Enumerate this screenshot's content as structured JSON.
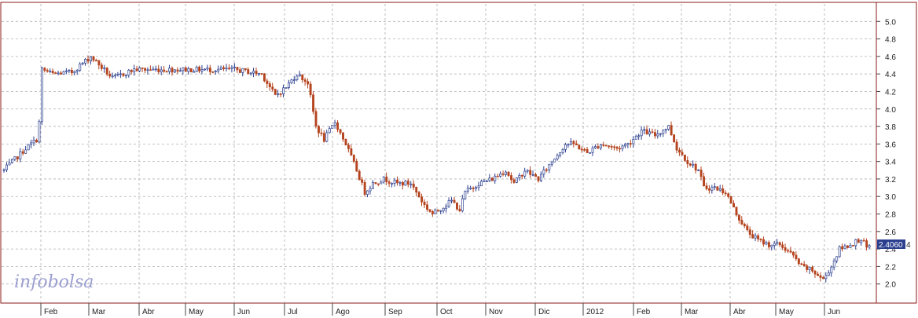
{
  "chart_data": {
    "type": "candlestick",
    "watermark": "infobolsa",
    "last_value_label": "2.4060",
    "y_axis": {
      "min": 1.8,
      "max": 5.2,
      "side": "right",
      "ticks": [
        "2.0",
        "2.2",
        "2.4",
        "2.6",
        "2.8",
        "3.0",
        "3.2",
        "3.4",
        "3.6",
        "3.8",
        "4.0",
        "4.2",
        "4.4",
        "4.6",
        "4.8",
        "5.0"
      ]
    },
    "x_axis": {
      "labels": [
        "Feb",
        "Mar",
        "Abr",
        "May",
        "Jun",
        "Jul",
        "Ago",
        "Sep",
        "Oct",
        "Nov",
        "Dic",
        "2012",
        "Feb",
        "Mar",
        "Abr",
        "May",
        "Jun"
      ]
    },
    "grid": true,
    "colors": {
      "up": "#2b3f8f",
      "down": "#b5441f",
      "frame": "#8b1a1a",
      "grid": "#b0b0b0",
      "label_bg": "#2b3f8f"
    },
    "series_anchors": [
      [
        0,
        3.3
      ],
      [
        8,
        3.55
      ],
      [
        12,
        3.65
      ],
      [
        13,
        3.85
      ],
      [
        14,
        4.45
      ],
      [
        18,
        4.4
      ],
      [
        25,
        4.42
      ],
      [
        32,
        4.6
      ],
      [
        40,
        4.35
      ],
      [
        48,
        4.45
      ],
      [
        60,
        4.45
      ],
      [
        75,
        4.45
      ],
      [
        85,
        4.45
      ],
      [
        95,
        4.4
      ],
      [
        100,
        4.15
      ],
      [
        104,
        4.25
      ],
      [
        108,
        4.4
      ],
      [
        112,
        4.3
      ],
      [
        115,
        3.8
      ],
      [
        118,
        3.65
      ],
      [
        122,
        3.85
      ],
      [
        126,
        3.6
      ],
      [
        130,
        3.3
      ],
      [
        133,
        3.05
      ],
      [
        136,
        3.15
      ],
      [
        140,
        3.2
      ],
      [
        145,
        3.15
      ],
      [
        150,
        3.15
      ],
      [
        155,
        2.9
      ],
      [
        158,
        2.8
      ],
      [
        165,
        2.95
      ],
      [
        168,
        2.85
      ],
      [
        170,
        3.05
      ],
      [
        175,
        3.15
      ],
      [
        180,
        3.2
      ],
      [
        185,
        3.3
      ],
      [
        188,
        3.15
      ],
      [
        192,
        3.3
      ],
      [
        197,
        3.2
      ],
      [
        202,
        3.4
      ],
      [
        207,
        3.6
      ],
      [
        210,
        3.6
      ],
      [
        215,
        3.5
      ],
      [
        220,
        3.6
      ],
      [
        226,
        3.55
      ],
      [
        230,
        3.6
      ],
      [
        235,
        3.75
      ],
      [
        240,
        3.7
      ],
      [
        245,
        3.8
      ],
      [
        248,
        3.55
      ],
      [
        252,
        3.4
      ],
      [
        256,
        3.3
      ],
      [
        258,
        3.1
      ],
      [
        262,
        3.1
      ],
      [
        266,
        3.05
      ],
      [
        270,
        2.8
      ],
      [
        274,
        2.6
      ],
      [
        278,
        2.5
      ],
      [
        282,
        2.45
      ],
      [
        286,
        2.45
      ],
      [
        290,
        2.35
      ],
      [
        294,
        2.2
      ],
      [
        298,
        2.15
      ],
      [
        302,
        2.05
      ],
      [
        305,
        2.2
      ],
      [
        308,
        2.4
      ],
      [
        312,
        2.45
      ],
      [
        316,
        2.52
      ],
      [
        318,
        2.41
      ]
    ]
  }
}
